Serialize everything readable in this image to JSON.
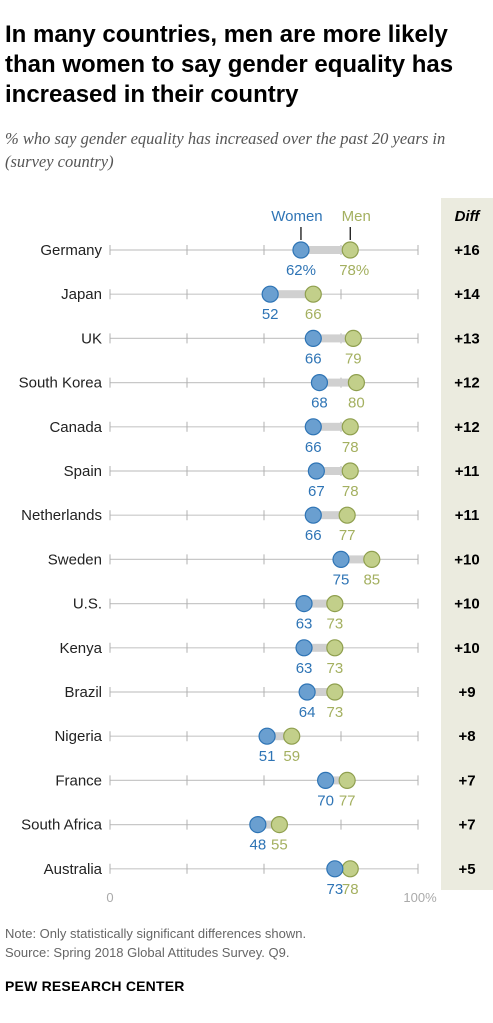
{
  "title": "In many countries, men are more likely than women to say gender equality has increased in their country",
  "subtitle": "% who say gender equality has increased over the past 20 years in (survey country)",
  "note": "Note: Only statistically significant differences shown.",
  "source": "Source: Spring 2018 Global Attitudes Survey. Q9.",
  "brand": "PEW RESEARCH CENTER",
  "colors": {
    "women": "#6a9fd0",
    "women_stroke": "#2e74b5",
    "women_text": "#2e74b5",
    "men": "#c2cf8a",
    "men_stroke": "#8f9f4e",
    "men_text": "#a4b060",
    "connector": "#d0d0d0",
    "diff_bg": "#ebebdf"
  },
  "chart_data": {
    "type": "dot",
    "legend": {
      "women": "Women",
      "men": "Men"
    },
    "diff_header": "Diff",
    "axis": {
      "min": 0,
      "max": 100,
      "min_label": "0",
      "max_label": "100%"
    },
    "categories": [
      "Germany",
      "Japan",
      "UK",
      "South Korea",
      "Canada",
      "Spain",
      "Netherlands",
      "Sweden",
      "U.S.",
      "Kenya",
      "Brazil",
      "Nigeria",
      "France",
      "South Africa",
      "Australia"
    ],
    "series": [
      {
        "name": "Women",
        "values": [
          62,
          52,
          66,
          68,
          66,
          67,
          66,
          75,
          63,
          63,
          64,
          51,
          70,
          48,
          73
        ]
      },
      {
        "name": "Men",
        "values": [
          78,
          66,
          79,
          80,
          78,
          78,
          77,
          85,
          73,
          73,
          73,
          59,
          77,
          55,
          78
        ]
      }
    ],
    "women_labels": [
      "62%",
      "52",
      "66",
      "68",
      "66",
      "67",
      "66",
      "75",
      "63",
      "63",
      "64",
      "51",
      "70",
      "48",
      "73"
    ],
    "men_labels": [
      "78%",
      "66",
      "79",
      "80",
      "78",
      "78",
      "77",
      "85",
      "73",
      "73",
      "73",
      "59",
      "77",
      "55",
      "78"
    ],
    "diff": [
      "+16",
      "+14",
      "+13",
      "+12",
      "+12",
      "+11",
      "+11",
      "+10",
      "+10",
      "+10",
      "+9",
      "+8",
      "+7",
      "+7",
      "+5"
    ]
  }
}
